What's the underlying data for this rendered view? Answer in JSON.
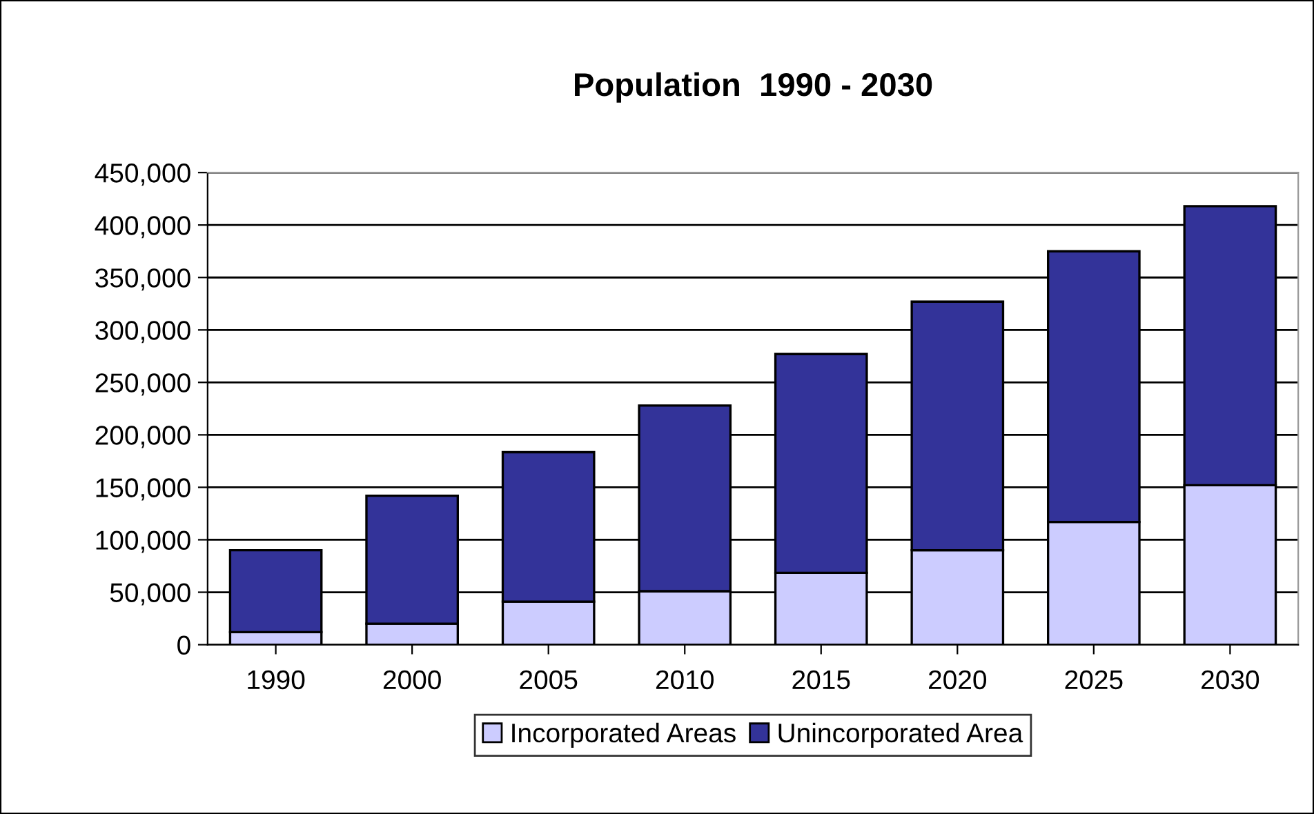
{
  "chart_data": {
    "type": "bar",
    "title": "Population  1990 - 2030",
    "categories": [
      "1990",
      "2000",
      "2005",
      "2010",
      "2015",
      "2020",
      "2025",
      "2030"
    ],
    "stacked": true,
    "series": [
      {
        "name": "Incorporated Areas",
        "color": "#ccccff",
        "values": [
          12000,
          20000,
          41000,
          51000,
          68500,
          90000,
          117000,
          152000
        ]
      },
      {
        "name": "Unincorporated Area",
        "color": "#333399",
        "values": [
          78000,
          122000,
          142500,
          177000,
          208500,
          237000,
          258000,
          266000
        ]
      }
    ],
    "ylim": [
      0,
      450000
    ],
    "yticks": [
      {
        "value": 0,
        "label": "0"
      },
      {
        "value": 50000,
        "label": "50,000"
      },
      {
        "value": 100000,
        "label": "100,000"
      },
      {
        "value": 150000,
        "label": "150,000"
      },
      {
        "value": 200000,
        "label": "200,000"
      },
      {
        "value": 250000,
        "label": "250,000"
      },
      {
        "value": 300000,
        "label": "300,000"
      },
      {
        "value": 350000,
        "label": "350,000"
      },
      {
        "value": 400000,
        "label": "400,000"
      },
      {
        "value": 450000,
        "label": "450,000"
      }
    ],
    "grid": "y",
    "legend": "bottom"
  }
}
